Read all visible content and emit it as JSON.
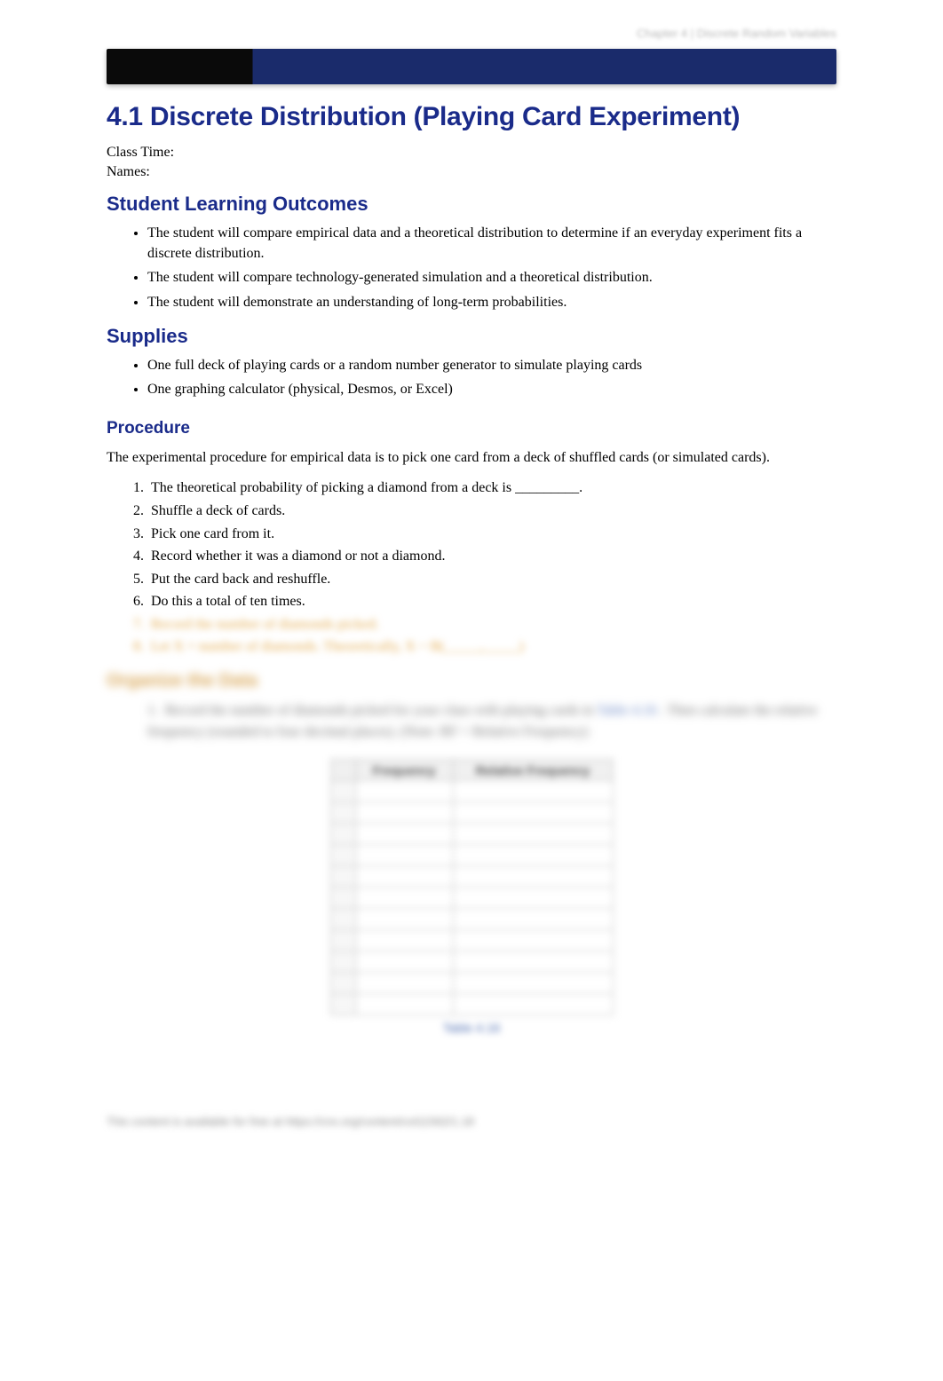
{
  "topbar": {
    "page_number": "",
    "chapter_label": "Chapter 4 | Discrete Random Variables"
  },
  "title": "4.1 Discrete Distribution (Playing Card Experiment)",
  "meta": {
    "class_time": "Class Time:",
    "names": "Names:"
  },
  "sections": {
    "outcomes": {
      "heading": "Student Learning Outcomes",
      "items": [
        "The student will compare empirical data and a theoretical distribution to determine if an everyday experiment fits a discrete distribution.",
        "The student will compare technology-generated simulation and a theoretical distribution.",
        "The student will demonstrate an understanding of long-term probabilities."
      ]
    },
    "supplies": {
      "heading": "Supplies",
      "items": [
        "One full deck of playing cards or a random number generator to simulate playing cards",
        "One graphing calculator (physical, Desmos, or Excel)"
      ]
    },
    "procedure": {
      "heading": "Procedure",
      "intro": "The experimental procedure for empirical data is to pick one card from a deck of shuffled cards (or simulated cards).",
      "steps": [
        "The theoretical probability of picking a diamond from a deck is _________.",
        "Shuffle a deck of cards.",
        "Pick one card from it.",
        "Record whether it was a diamond or not a diamond.",
        "Put the card back and reshuffle.",
        "Do this a total of ten times.",
        "Record the number of diamonds picked.",
        "Let X = number of diamonds. Theoretically, X ~ B(_____,_____)"
      ]
    },
    "organize": {
      "heading": "Organize the Data",
      "para_a": "Record the number of diamonds picked for your class with playing cards in ",
      "para_link": "Table 4.16",
      "para_b": ". Then calculate the relative frequency (rounded to four decimal places). (Note: RF = Relative Frequency)"
    }
  },
  "table": {
    "headers": {
      "idx": "",
      "col1": "Frequency",
      "col2": "Relative Frequency"
    },
    "row_count": 11,
    "caption": "Table 4.16"
  },
  "footer": "This content is available for free at https://cnx.org/content/col11562/1.18",
  "colors": {
    "heading": "#1a2b8a",
    "banner_dark": "#0a0a0a",
    "banner_blue": "#1a2b6b",
    "blur_gold": "#d9a85a"
  }
}
